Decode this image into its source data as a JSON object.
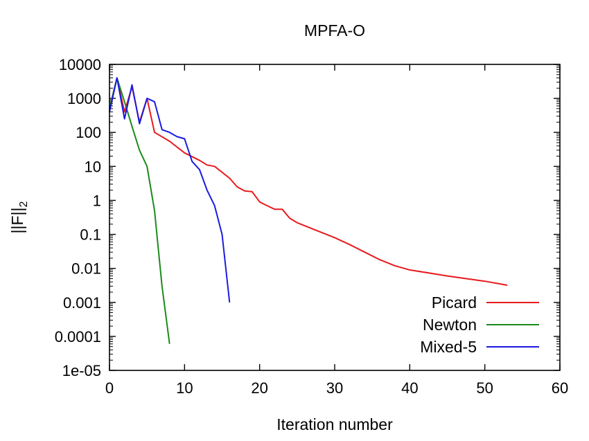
{
  "chart_data": {
    "type": "line",
    "title": "MPFA-O",
    "xlabel": "Iteration number",
    "ylabel_main": "||F||",
    "ylabel_sub": "2",
    "xlim": [
      0,
      60
    ],
    "ylim": [
      1e-05,
      10000
    ],
    "yscale": "log",
    "x_ticks": [
      0,
      10,
      20,
      30,
      40,
      50,
      60
    ],
    "x_tick_labels": [
      "0",
      "10",
      "20",
      "30",
      "40",
      "50",
      "60"
    ],
    "y_ticks": [
      10000,
      1000,
      100,
      10,
      1,
      0.1,
      0.01,
      0.001,
      0.0001,
      1e-05
    ],
    "y_tick_labels": [
      "10000",
      "1000",
      "100",
      "10",
      "1",
      "0.1",
      "0.01",
      "0.001",
      "0.0001",
      "1e-05"
    ],
    "grid": false,
    "legend_position": "bottom-right",
    "series": [
      {
        "name": "Picard",
        "color": "#e8191c",
        "points": [
          [
            0,
            500
          ],
          [
            1,
            4000
          ],
          [
            2,
            400
          ],
          [
            3,
            2200
          ],
          [
            4,
            200
          ],
          [
            5,
            1000
          ],
          [
            6,
            100
          ],
          [
            8,
            55
          ],
          [
            10,
            25
          ],
          [
            12,
            15
          ],
          [
            13,
            11
          ],
          [
            14,
            10
          ],
          [
            16,
            4.5
          ],
          [
            17,
            2.5
          ],
          [
            18,
            1.9
          ],
          [
            19,
            1.8
          ],
          [
            20,
            0.9
          ],
          [
            21,
            0.7
          ],
          [
            22,
            0.55
          ],
          [
            23,
            0.55
          ],
          [
            24,
            0.3
          ],
          [
            25,
            0.22
          ],
          [
            28,
            0.12
          ],
          [
            30,
            0.08
          ],
          [
            32,
            0.05
          ],
          [
            34,
            0.03
          ],
          [
            36,
            0.018
          ],
          [
            38,
            0.012
          ],
          [
            40,
            0.009
          ],
          [
            45,
            0.006
          ],
          [
            50,
            0.0042
          ],
          [
            53,
            0.0032
          ]
        ]
      },
      {
        "name": "Newton",
        "color": "#1a8a1a",
        "points": [
          [
            0,
            500
          ],
          [
            1,
            4000
          ],
          [
            2,
            800
          ],
          [
            3,
            150
          ],
          [
            4,
            30
          ],
          [
            5,
            10
          ],
          [
            6,
            0.5
          ],
          [
            7,
            0.003
          ],
          [
            8,
            6e-05
          ]
        ]
      },
      {
        "name": "Mixed-5",
        "color": "#1a1ae0",
        "points": [
          [
            0,
            400
          ],
          [
            1,
            4000
          ],
          [
            2,
            250
          ],
          [
            3,
            2500
          ],
          [
            4,
            180
          ],
          [
            5,
            1000
          ],
          [
            6,
            800
          ],
          [
            7,
            120
          ],
          [
            8,
            100
          ],
          [
            9,
            75
          ],
          [
            10,
            65
          ],
          [
            11,
            14
          ],
          [
            12,
            8
          ],
          [
            13,
            2
          ],
          [
            14,
            0.7
          ],
          [
            15,
            0.1
          ],
          [
            16,
            0.001
          ]
        ]
      }
    ]
  }
}
